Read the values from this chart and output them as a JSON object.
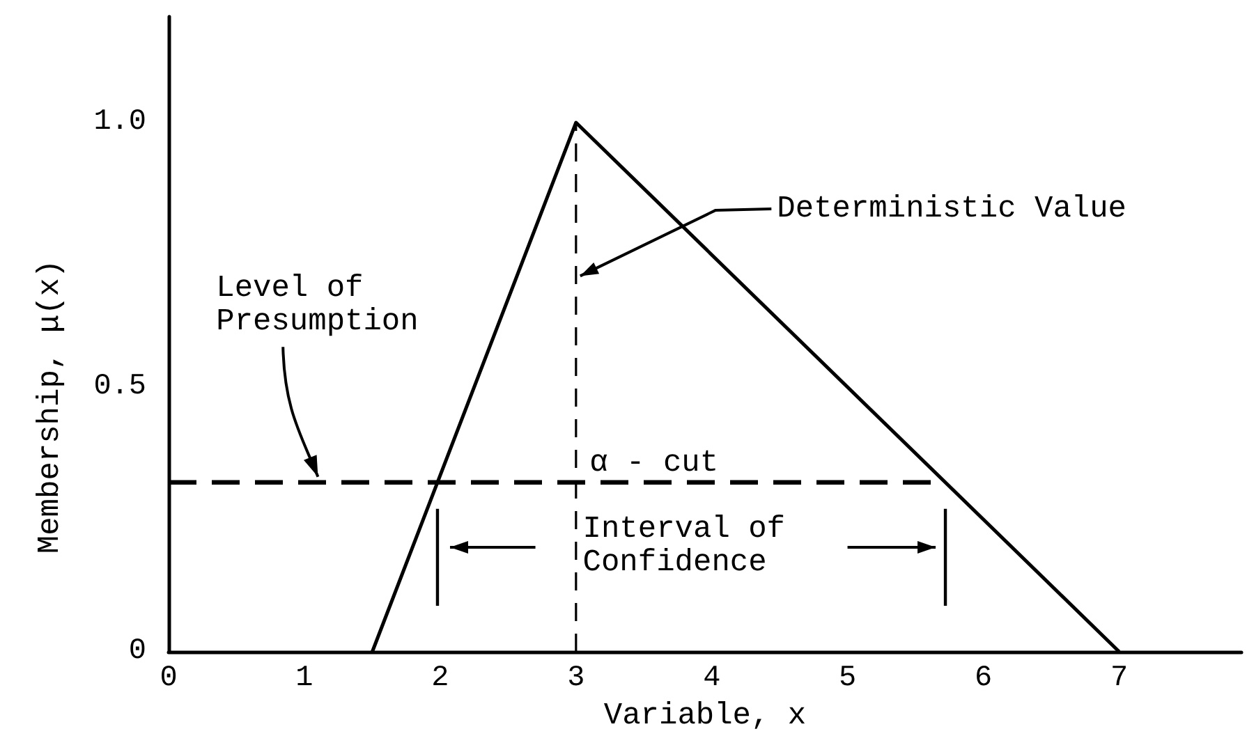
{
  "chart_data": {
    "type": "line",
    "xlabel": "Variable, x",
    "ylabel": "Membership, μ(x)",
    "xlim": [
      0,
      7.9
    ],
    "ylim": [
      0,
      1.2
    ],
    "xticks": [
      0,
      1,
      2,
      3,
      4,
      5,
      6,
      7
    ],
    "yticks": [
      0,
      0.5,
      {
        "value": 1,
        "label": "1.0"
      }
    ],
    "marker": "none",
    "series": [
      {
        "color": "#000000",
        "x": [
          1.5,
          3,
          7
        ],
        "values": [
          0,
          1,
          0
        ],
        "line_style": "solid"
      },
      {
        "color": "#000000",
        "x": [
          0,
          5.72
        ],
        "values": [
          0.32,
          0.32
        ],
        "line_style": "dashed"
      },
      {
        "color": "#000000",
        "x": [
          3,
          3
        ],
        "values": [
          0,
          1
        ],
        "line_style": "dashed"
      }
    ],
    "annotations": [
      {
        "text": "Deterministic Value",
        "x": 3,
        "y": 0.71
      },
      {
        "text": "Level of\nPresumption",
        "x": 1.1,
        "y": 0.32
      },
      "α - cut",
      "Interval of\nConfidence"
    ]
  }
}
